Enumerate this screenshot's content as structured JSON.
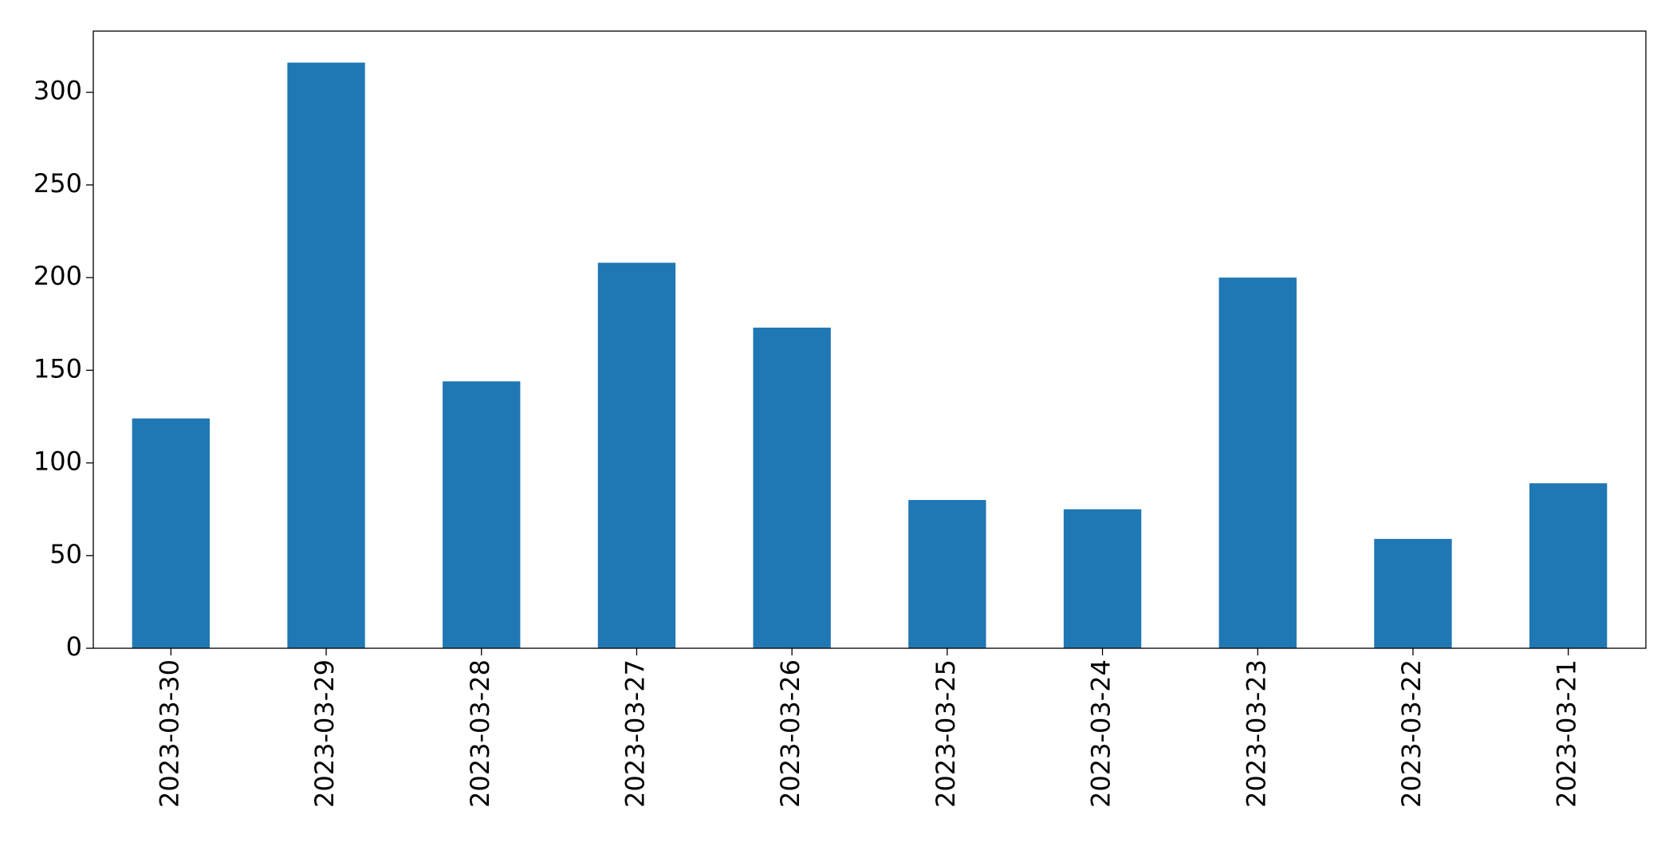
{
  "chart_data": {
    "type": "bar",
    "categories": [
      "2023-03-30",
      "2023-03-29",
      "2023-03-28",
      "2023-03-27",
      "2023-03-26",
      "2023-03-25",
      "2023-03-24",
      "2023-03-23",
      "2023-03-22",
      "2023-03-21"
    ],
    "values": [
      124,
      316,
      144,
      208,
      173,
      80,
      75,
      200,
      59,
      89
    ],
    "color": "#1f77b4",
    "ylim": [
      0,
      333
    ],
    "yticks": [
      0,
      50,
      100,
      150,
      200,
      250,
      300
    ],
    "grid": false
  }
}
